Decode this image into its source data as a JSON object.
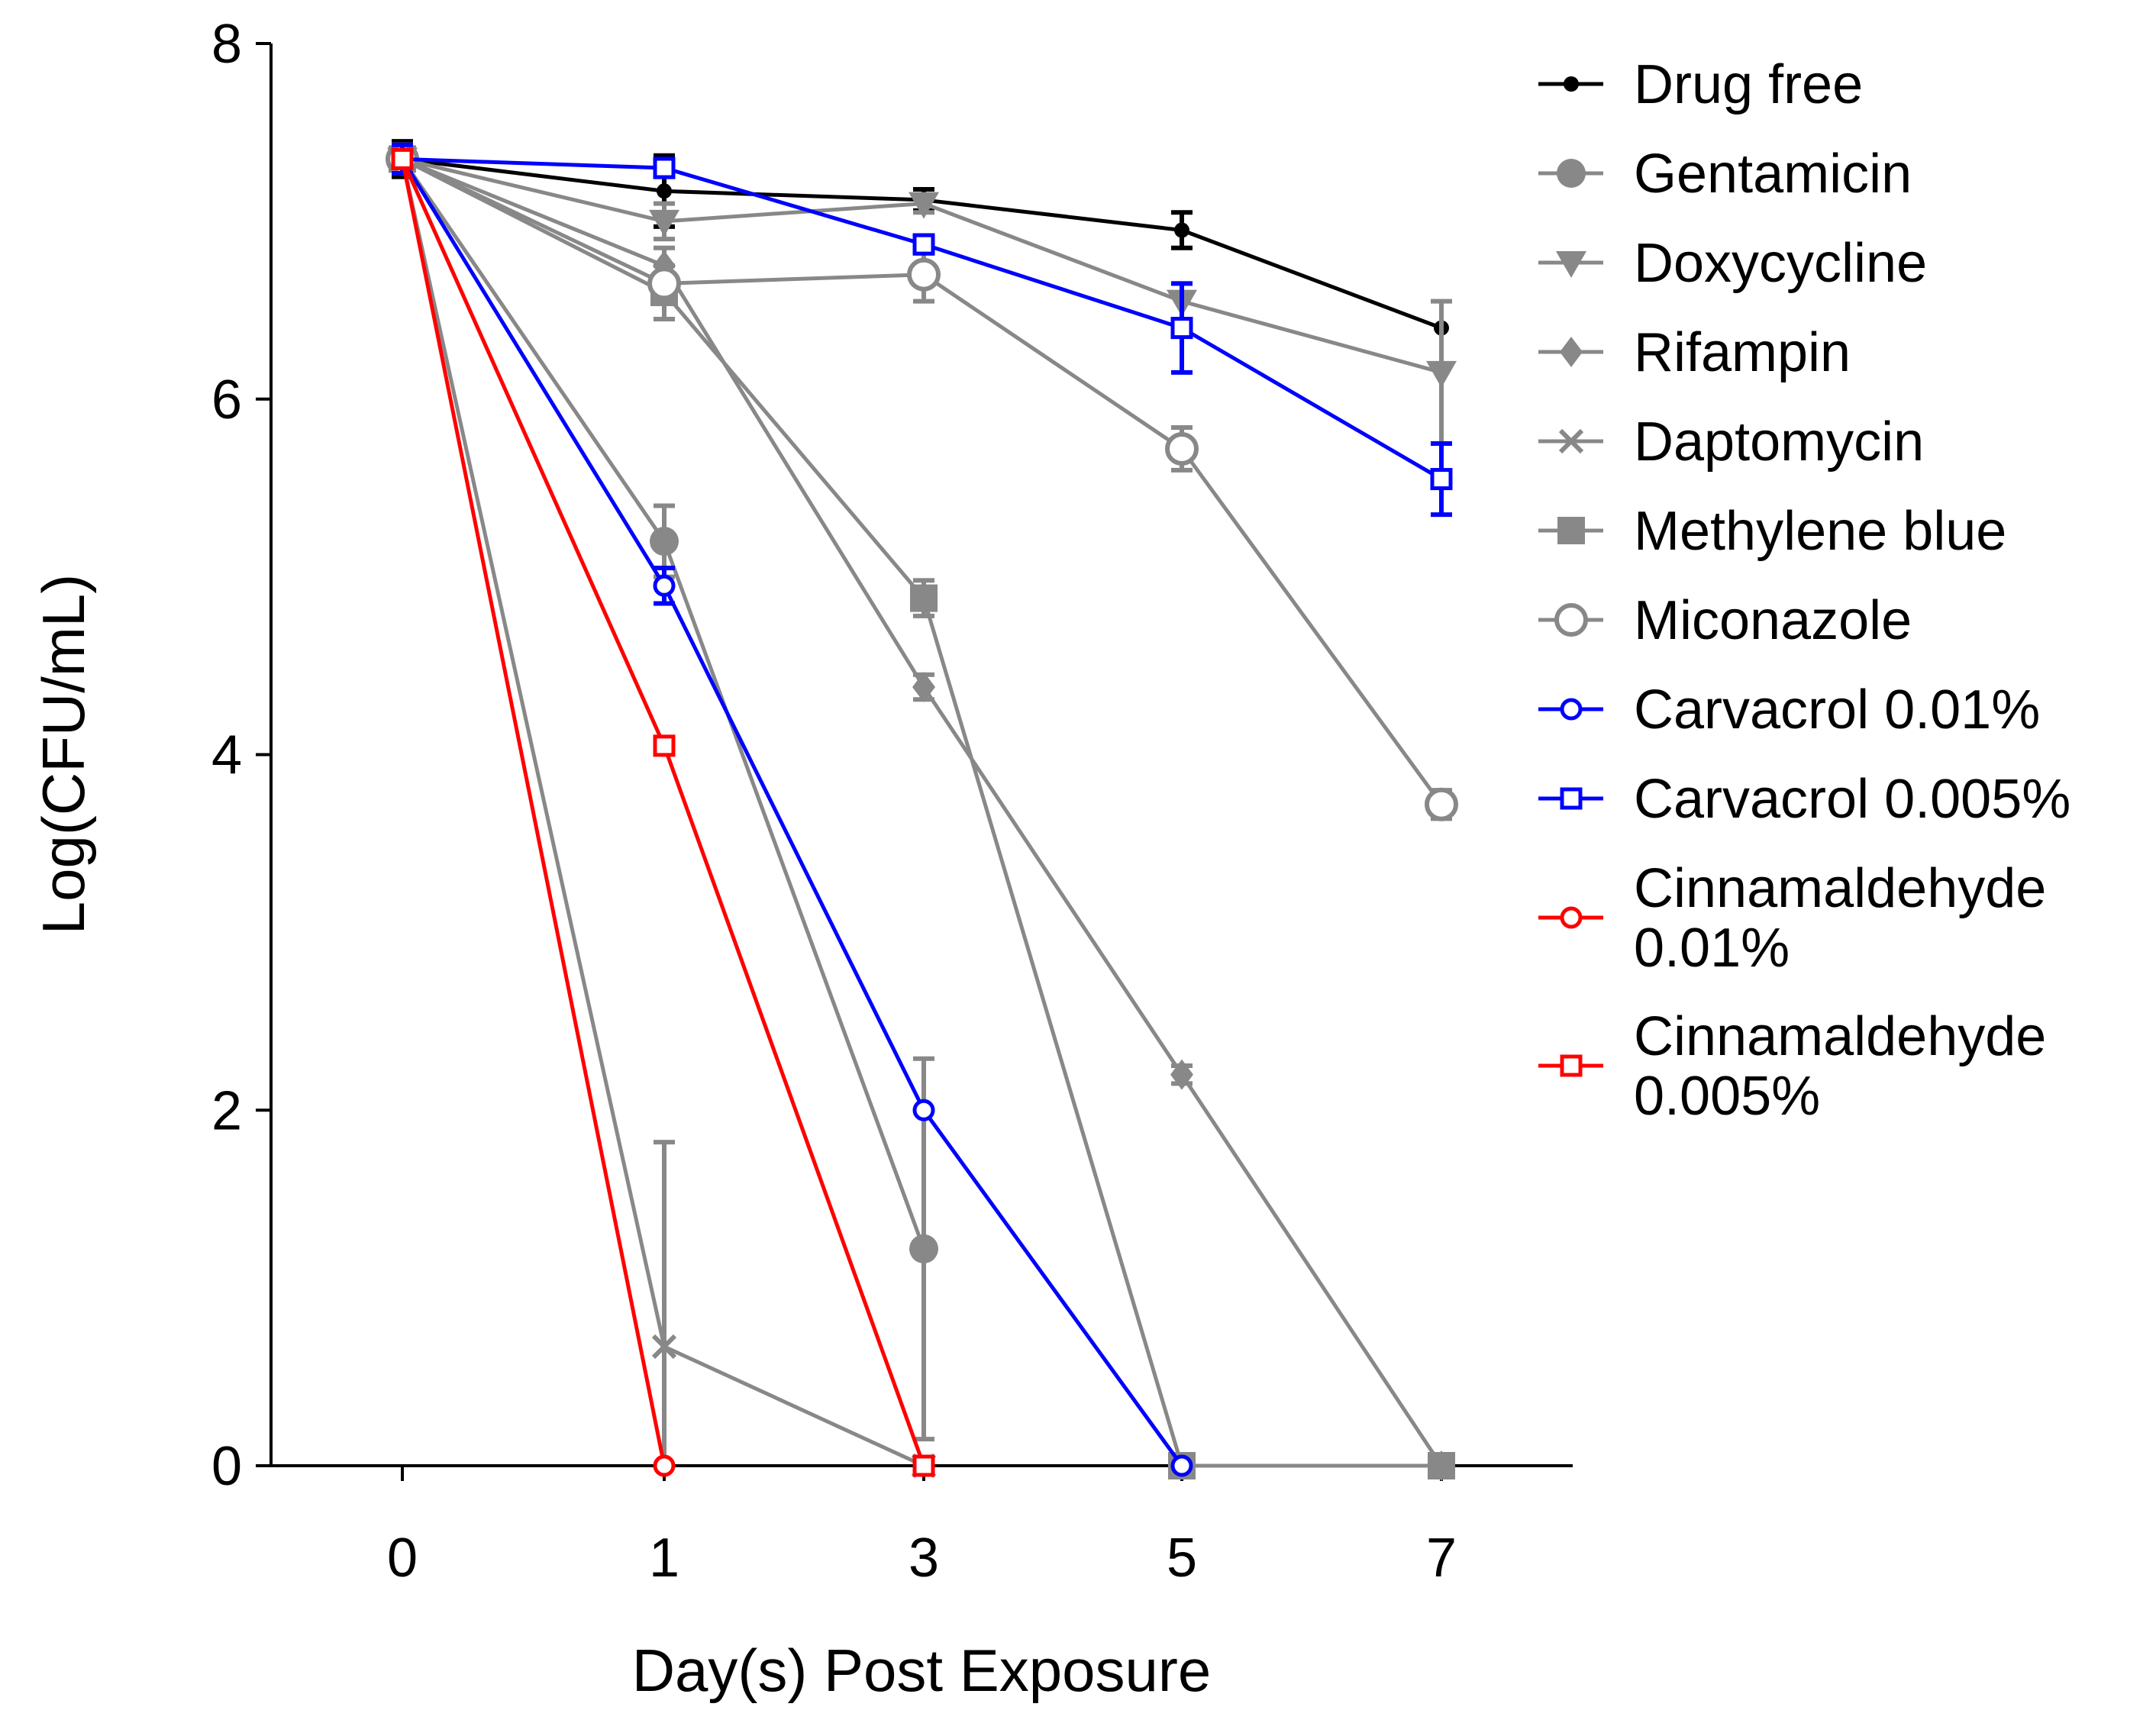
{
  "chart_data": {
    "type": "line",
    "title": "",
    "xlabel": "Day(s) Post Exposure",
    "ylabel": "Log(CFU/mL)",
    "categories": [
      "0",
      "1",
      "3",
      "5",
      "7"
    ],
    "ylim": [
      0,
      8
    ],
    "yticks": [
      "0",
      "2",
      "4",
      "6",
      "8"
    ],
    "grid": false,
    "legend_position": "right",
    "series": [
      {
        "name": "Drug free",
        "legend_lines": [
          "Drug free"
        ],
        "color": "#000000",
        "marker": "dot",
        "values": [
          7.35,
          7.17,
          7.12,
          6.95,
          6.4
        ],
        "errors": [
          0.1,
          0.2,
          0.06,
          0.1,
          0.0
        ]
      },
      {
        "name": "Gentamicin",
        "legend_lines": [
          "Gentamicin"
        ],
        "color": "#888888",
        "marker": "circle-filled",
        "values": [
          7.35,
          5.2,
          1.22,
          null,
          null
        ],
        "errors": [
          0.08,
          0.2,
          1.07,
          0,
          0
        ]
      },
      {
        "name": "Doxycycline",
        "legend_lines": [
          "Doxycycline"
        ],
        "color": "#888888",
        "marker": "triangle-down",
        "values": [
          7.35,
          7.0,
          7.1,
          6.55,
          6.15
        ],
        "errors": [
          0.08,
          0.1,
          0.05,
          0.1,
          0.4
        ]
      },
      {
        "name": "Rifampin",
        "legend_lines": [
          "Rifampin"
        ],
        "color": "#888888",
        "marker": "diamond",
        "values": [
          7.35,
          6.75,
          4.38,
          2.2,
          0
        ],
        "errors": [
          0.08,
          0.1,
          0.07,
          0.05,
          0
        ]
      },
      {
        "name": "Daptomycin",
        "legend_lines": [
          "Daptomycin"
        ],
        "color": "#888888",
        "marker": "x",
        "values": [
          7.35,
          0.67,
          0,
          null,
          null
        ],
        "errors": [
          0.08,
          1.15,
          0,
          0,
          0
        ]
      },
      {
        "name": "Methylene blue",
        "legend_lines": [
          "Methylene blue"
        ],
        "color": "#888888",
        "marker": "square-filled",
        "values": [
          7.35,
          6.6,
          4.88,
          0,
          0
        ],
        "errors": [
          0.08,
          0.15,
          0.1,
          0,
          0
        ]
      },
      {
        "name": "Miconazole",
        "legend_lines": [
          "Miconazole"
        ],
        "color": "#888888",
        "marker": "circle-open",
        "values": [
          7.35,
          6.65,
          6.7,
          5.72,
          3.72
        ],
        "errors": [
          0.08,
          0.1,
          0.15,
          0.12,
          0.08
        ]
      },
      {
        "name": "Carvacrol 0.01%",
        "legend_lines": [
          "Carvacrol 0.01%"
        ],
        "color": "#0000ff",
        "marker": "circle-open-small",
        "values": [
          7.35,
          4.95,
          2.0,
          0,
          null
        ],
        "errors": [
          0.08,
          0.1,
          0,
          0,
          0
        ]
      },
      {
        "name": "Carvacrol 0.005%",
        "legend_lines": [
          "Carvacrol 0.005%"
        ],
        "color": "#0000ff",
        "marker": "square-open",
        "values": [
          7.35,
          7.3,
          6.87,
          6.4,
          5.55
        ],
        "errors": [
          0.05,
          0.05,
          0.05,
          0.25,
          0.2
        ]
      },
      {
        "name": "Cinnamaldehyde 0.01%",
        "legend_lines": [
          "Cinnamaldehyde",
          "0.01%"
        ],
        "color": "#ff0000",
        "marker": "circle-open-small",
        "values": [
          7.35,
          0,
          null,
          null,
          null
        ],
        "errors": [
          0.05,
          0,
          0,
          0,
          0
        ]
      },
      {
        "name": "Cinnamaldehyde 0.005%",
        "legend_lines": [
          "Cinnamaldehyde",
          "0.005%"
        ],
        "color": "#ff0000",
        "marker": "square-open",
        "values": [
          7.35,
          4.05,
          0,
          null,
          null
        ],
        "errors": [
          0.05,
          0,
          0,
          0,
          0
        ]
      }
    ]
  }
}
